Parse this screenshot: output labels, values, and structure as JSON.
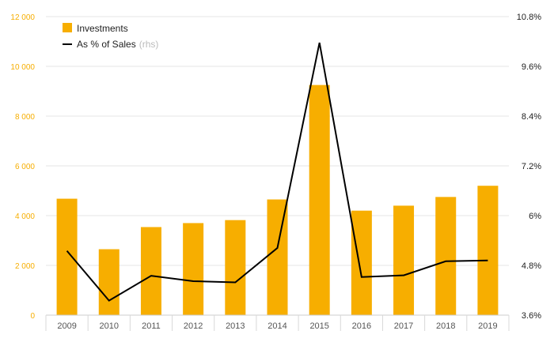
{
  "chart_data": {
    "type": "bar",
    "categories": [
      "2009",
      "2010",
      "2011",
      "2012",
      "2013",
      "2014",
      "2015",
      "2016",
      "2017",
      "2018",
      "2019"
    ],
    "series": [
      {
        "name": "Investments",
        "type": "bar",
        "axis": "left",
        "values": [
          4680,
          2650,
          3540,
          3700,
          3820,
          4650,
          9250,
          4200,
          4400,
          4750,
          5200
        ]
      },
      {
        "name": "As % of Sales",
        "name_suffix": "(rhs)",
        "type": "line",
        "axis": "right",
        "values": [
          5.15,
          3.95,
          4.55,
          4.42,
          4.39,
          5.22,
          10.17,
          4.52,
          4.56,
          4.9,
          4.92
        ]
      }
    ],
    "y_left": {
      "ylim": [
        0,
        12000
      ],
      "ticks": [
        0,
        2000,
        4000,
        6000,
        8000,
        10000,
        12000
      ],
      "tick_labels": [
        "0",
        "2 000",
        "4 000",
        "6 000",
        "8 000",
        "10 000",
        "12 000"
      ]
    },
    "y_right": {
      "ylim": [
        3.6,
        10.8
      ],
      "ticks": [
        3.6,
        4.8,
        6,
        7.2,
        8.4,
        9.6,
        10.8
      ],
      "tick_labels": [
        "3.6%",
        "4.8%",
        "6%",
        "7.2%",
        "8.4%",
        "9.6%",
        "10.8%"
      ]
    },
    "grid": true,
    "legend_position": "top-left",
    "colors": {
      "bar": "#f7ae00",
      "line": "#000000",
      "left_axis_text": "#f7ae00",
      "right_axis_text": "#222222",
      "x_axis_text": "#555555",
      "grid": "#e6e6e6",
      "legend_muted": "#bbbbbb"
    }
  }
}
